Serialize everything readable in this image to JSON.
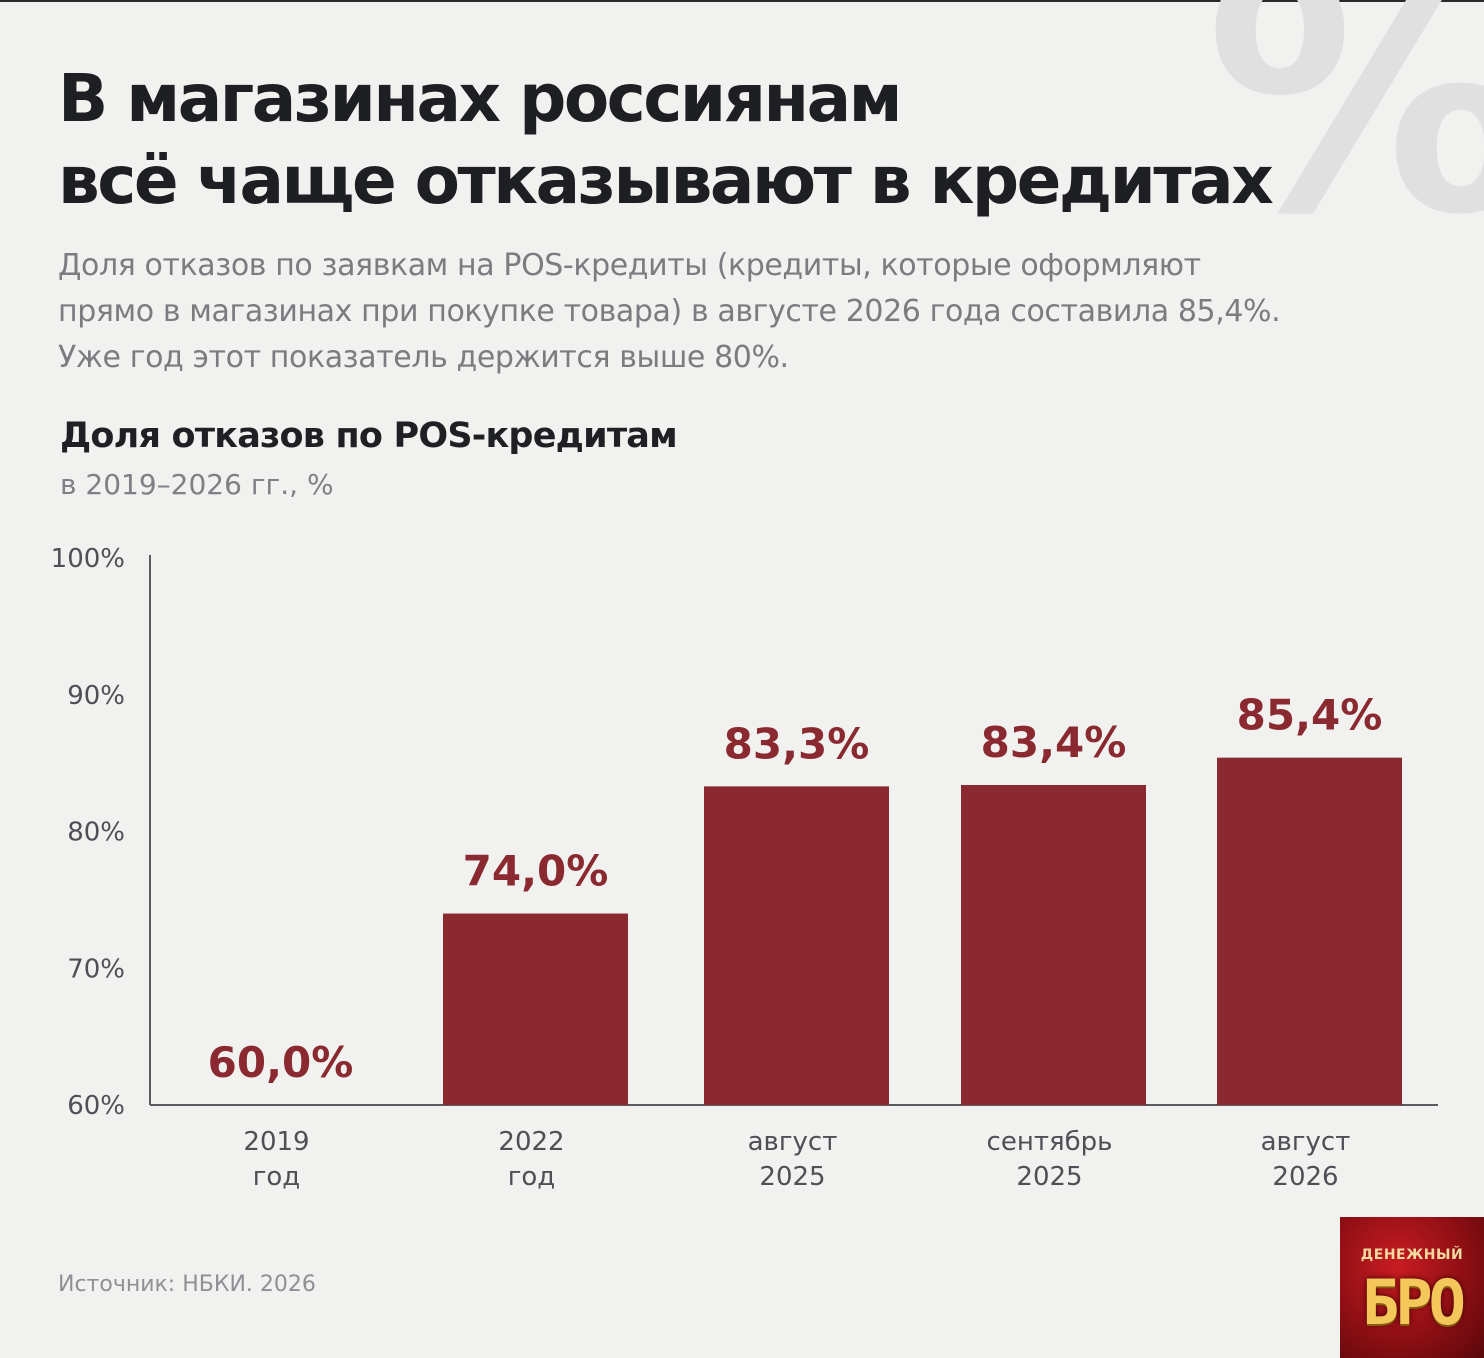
{
  "header": {
    "title_lines": [
      "В магазинах россиянам",
      "всё чаще отказывают в кредитах"
    ],
    "background_glyph": "%",
    "lead_lines": [
      "Доля отказов по заявкам на POS-кредиты (кредиты, которые оформляют",
      "прямо в магазинах при покупке товара) в августе 2026 года составила 85,4%.",
      "Уже год этот показатель держится выше 80%."
    ]
  },
  "chart_data": {
    "type": "bar",
    "title": "Доля отказов по POS-кредитам",
    "subtitle": "в 2019–2026 гг., %",
    "categories": [
      [
        "2019",
        "год"
      ],
      [
        "2022",
        "год"
      ],
      [
        "август",
        "2025"
      ],
      [
        "сентябрь",
        "2025"
      ],
      [
        "август",
        "2026"
      ]
    ],
    "values": [
      60.0,
      74.0,
      83.3,
      83.4,
      85.4
    ],
    "value_labels": [
      "60,0%",
      "74,0%",
      "83,3%",
      "83,4%",
      "85,4%"
    ],
    "yticks": [
      100,
      90,
      80,
      70,
      60
    ],
    "ytick_labels": [
      "100%",
      "90%",
      "80%",
      "70%",
      "60%"
    ],
    "ylim": [
      60,
      100
    ],
    "grid": false,
    "legend": "none",
    "bar_color": "#8a2a30"
  },
  "footer": {
    "source": "Источник: НБКИ. 2026",
    "logo_top": "ДЕНЕЖНЫЙ",
    "logo_main": "БРО"
  }
}
